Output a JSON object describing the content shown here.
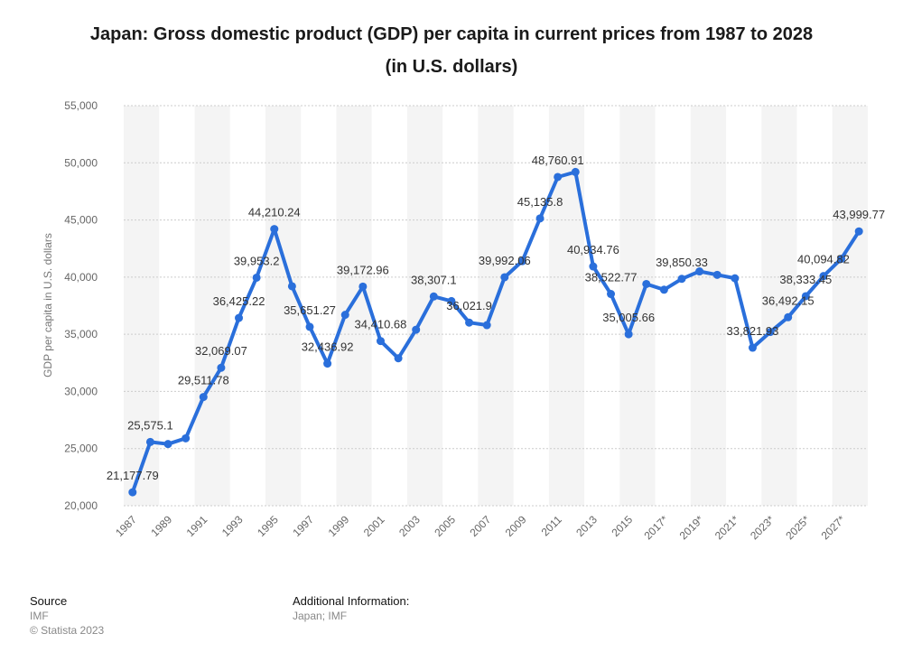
{
  "title_line1": "Japan: Gross domestic product (GDP) per capita in current prices from 1987 to 2028",
  "title_line2": "(in U.S. dollars)",
  "chart_data": {
    "type": "line",
    "title": "Japan: Gross domestic product (GDP) per capita in current prices from 1987 to 2028 (in U.S. dollars)",
    "xlabel": "",
    "ylabel": "GDP per capita in U.S. dollars",
    "ylim": [
      20000,
      55000
    ],
    "yticks": [
      20000,
      25000,
      30000,
      35000,
      40000,
      45000,
      50000,
      55000
    ],
    "ytick_labels": [
      "20,000",
      "25,000",
      "30,000",
      "35,000",
      "40,000",
      "45,000",
      "50,000",
      "55,000"
    ],
    "x": [
      "1987",
      "1988",
      "1989",
      "1990",
      "1991",
      "1992",
      "1993",
      "1994",
      "1995",
      "1996",
      "1997",
      "1998",
      "1999",
      "2000",
      "2001",
      "2002",
      "2003",
      "2004",
      "2005",
      "2006",
      "2007",
      "2008",
      "2009",
      "2010",
      "2011",
      "2012",
      "2013",
      "2014",
      "2015",
      "2016",
      "2017*",
      "2018*",
      "2019*",
      "2020*",
      "2021*",
      "2022*",
      "2023*",
      "2024*",
      "2025*",
      "2026*",
      "2027*",
      "2028*"
    ],
    "xtick_labels": [
      "1987",
      "1989",
      "1991",
      "1993",
      "1995",
      "1997",
      "1999",
      "2001",
      "2003",
      "2005",
      "2007",
      "2009",
      "2011",
      "2013",
      "2015",
      "2017*",
      "2019*",
      "2021*",
      "2023*",
      "2025*",
      "2027*"
    ],
    "values": [
      21177.79,
      25575.1,
      25400,
      25900,
      29511.78,
      32069.07,
      36425.22,
      39953.2,
      44210.24,
      39200,
      35651.27,
      32436.92,
      36700,
      39172.96,
      34410.68,
      32900,
      35400,
      38307.1,
      37900,
      36021.9,
      35800,
      39992.06,
      41400,
      45135.8,
      48760.91,
      49200,
      40934.76,
      38522.77,
      35005.66,
      39400,
      38900,
      39850.33,
      40500,
      40200,
      39900,
      33821.93,
      35200,
      36492.15,
      38333.45,
      40094.82,
      41600,
      43999.77
    ],
    "data_labels": [
      {
        "x": "1987",
        "text": "21,177.79"
      },
      {
        "x": "1988",
        "text": "25,575.1"
      },
      {
        "x": "1991",
        "text": "29,511.78"
      },
      {
        "x": "1992",
        "text": "32,069.07"
      },
      {
        "x": "1993",
        "text": "36,425.22"
      },
      {
        "x": "1994",
        "text": "39,953.2"
      },
      {
        "x": "1995",
        "text": "44,210.24"
      },
      {
        "x": "1997",
        "text": "35,651.27"
      },
      {
        "x": "1998",
        "text": "32,436.92"
      },
      {
        "x": "2000",
        "text": "39,172.96"
      },
      {
        "x": "2001",
        "text": "34,410.68"
      },
      {
        "x": "2004",
        "text": "38,307.1"
      },
      {
        "x": "2006",
        "text": "36,021.9"
      },
      {
        "x": "2008",
        "text": "39,992.06"
      },
      {
        "x": "2010",
        "text": "45,135.8"
      },
      {
        "x": "2011",
        "text": "48,760.91"
      },
      {
        "x": "2013",
        "text": "40,934.76"
      },
      {
        "x": "2014",
        "text": "38,522.77"
      },
      {
        "x": "2015",
        "text": "35,005.66"
      },
      {
        "x": "2018*",
        "text": "39,850.33"
      },
      {
        "x": "2022*",
        "text": "33,821.93"
      },
      {
        "x": "2024*",
        "text": "36,492.15"
      },
      {
        "x": "2025*",
        "text": "38,333.45"
      },
      {
        "x": "2026*",
        "text": "40,094.82"
      },
      {
        "x": "2028*",
        "text": "43,999.77"
      }
    ],
    "grid": true,
    "legend": "none",
    "colors": {
      "line": "#2a6fdb",
      "grid": "#cccccc",
      "band": "#f4f4f4",
      "tick": "#666666",
      "label": "#333333"
    }
  },
  "footer": {
    "source_heading": "Source",
    "source_value": "IMF",
    "copyright": "© Statista 2023",
    "additional_heading": "Additional Information:",
    "additional_value": "Japan; IMF"
  }
}
